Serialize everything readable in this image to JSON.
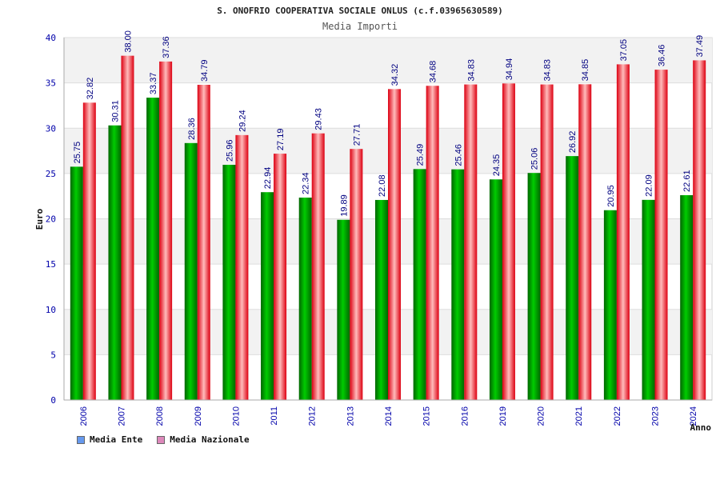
{
  "chart_data": {
    "type": "bar",
    "title": "S. ONOFRIO COOPERATIVA SOCIALE ONLUS (c.f.03965630589)",
    "subtitle": "Media Importi",
    "xlabel": "Anno",
    "ylabel": "Euro",
    "ylim": [
      0,
      40
    ],
    "yticks": [
      0,
      5,
      10,
      15,
      20,
      25,
      30,
      35,
      40
    ],
    "grid": "horizontal, alternating bands",
    "legend_position": "bottom-left",
    "categories": [
      "2006",
      "2007",
      "2008",
      "2009",
      "2010",
      "2011",
      "2012",
      "2013",
      "2014",
      "2015",
      "2016",
      "2019",
      "2020",
      "2021",
      "2022",
      "2023",
      "2024"
    ],
    "series": [
      {
        "name": "Media Ente",
        "color": "#00aa00",
        "legend_color": "#6699ee",
        "values": [
          25.75,
          30.31,
          33.37,
          28.36,
          25.96,
          22.94,
          22.34,
          19.89,
          22.08,
          25.49,
          25.46,
          24.35,
          25.06,
          26.92,
          20.95,
          22.09,
          22.61
        ]
      },
      {
        "name": "Media Nazionale",
        "color": "#ee2233",
        "legend_color": "#dd88bb",
        "values": [
          32.82,
          38.0,
          37.36,
          34.79,
          29.24,
          27.19,
          29.43,
          27.71,
          34.32,
          34.68,
          34.83,
          34.94,
          34.83,
          34.85,
          37.05,
          36.46,
          37.49
        ]
      }
    ],
    "value_labels": {
      "ente": [
        "25.75",
        "30.31",
        "33.37",
        "28.36",
        "25.96",
        "22.94",
        "22.34",
        "19.89",
        "22.08",
        "25.49",
        "25.46",
        "24.35",
        "25.06",
        "26.92",
        "20.95",
        "22.09",
        "22.61"
      ],
      "nazionale": [
        "32.82",
        "38.00",
        "37.36",
        "34.79",
        "29.24",
        "27.19",
        "29.43",
        "27.71",
        "34.32",
        "34.68",
        "34.83",
        "34.94",
        "34.83",
        "34.85",
        "37.05",
        "36.46",
        "37.49"
      ]
    }
  }
}
